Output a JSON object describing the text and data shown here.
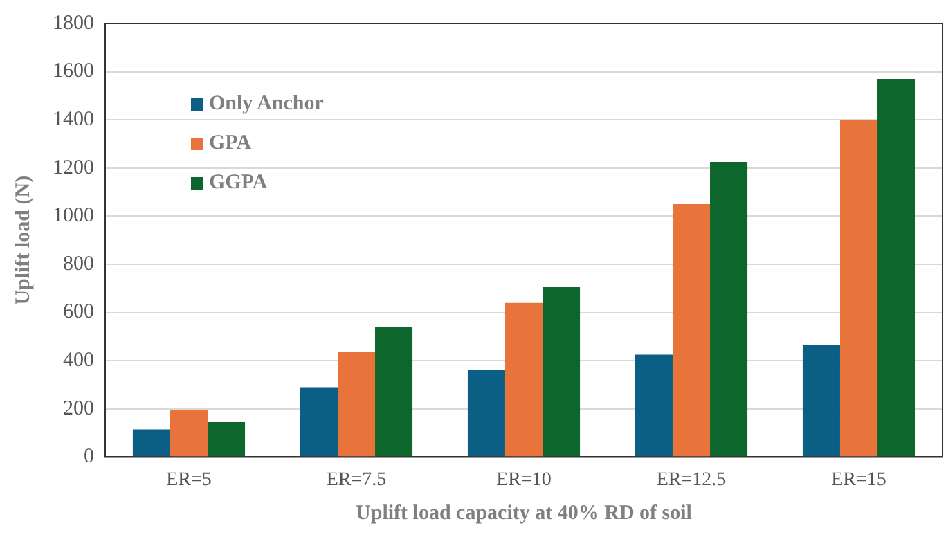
{
  "chart_data": {
    "type": "bar",
    "xlabel": "Uplift load capacity at 40% RD of soil",
    "ylabel": "Uplift load (N)",
    "categories": [
      "ER=5",
      "ER=7.5",
      "ER=10",
      "ER=12.5",
      "ER=15"
    ],
    "series": [
      {
        "name": "Only Anchor",
        "color": "#0b5e84",
        "values": [
          115,
          290,
          360,
          425,
          465
        ]
      },
      {
        "name": "GPA",
        "color": "#e8743b",
        "values": [
          195,
          435,
          640,
          1050,
          1400
        ]
      },
      {
        "name": "GGPA",
        "color": "#0d662c",
        "values": [
          145,
          540,
          705,
          1225,
          1570
        ]
      }
    ],
    "ylim": [
      0,
      1800
    ],
    "yticks": [
      0,
      200,
      400,
      600,
      800,
      1000,
      1200,
      1400,
      1600,
      1800
    ],
    "grid": "y",
    "legend": "top left"
  }
}
